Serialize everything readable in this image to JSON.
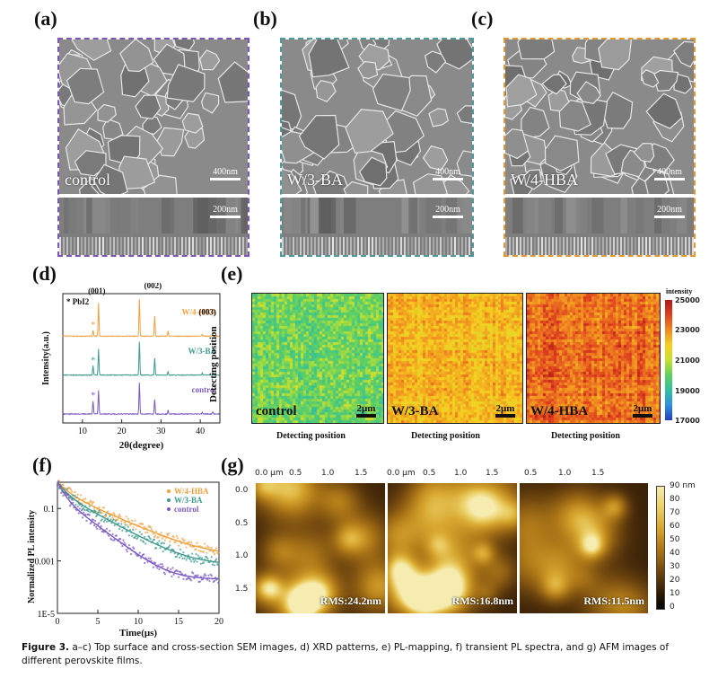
{
  "panels": {
    "a": {
      "label": "(a)",
      "film": "control",
      "top_scale": "400nm",
      "cross_scale": "200nm",
      "border_color": "#7b55b8"
    },
    "b": {
      "label": "(b)",
      "film": "W/3-BA",
      "top_scale": "400nm",
      "cross_scale": "200nm",
      "border_color": "#4a9a9a"
    },
    "c": {
      "label": "(c)",
      "film": "W/4-HBA",
      "top_scale": "400nm",
      "cross_scale": "200nm",
      "border_color": "#e8962e"
    },
    "d": {
      "label": "(d)"
    },
    "e": {
      "label": "(e)"
    },
    "f": {
      "label": "(f)"
    },
    "g": {
      "label": "(g)"
    }
  },
  "pl_mapping": {
    "ylabel": "Detecting position",
    "xlabels": [
      "Detecting position",
      "Detecting position",
      "Detecting position"
    ],
    "maps": [
      {
        "name": "control",
        "scale": "2μm"
      },
      {
        "name": "W/3-BA",
        "scale": "2μm"
      },
      {
        "name": "W/4-HBA",
        "scale": "2μm"
      }
    ],
    "colorbar": {
      "title": "intensity",
      "ticks": [
        "25000",
        "23000",
        "21000",
        "19000",
        "17000"
      ]
    }
  },
  "afm": {
    "x_ticks": [
      "0.0 μm",
      "0.5",
      "1.0",
      "1.5"
    ],
    "y_ticks": [
      "0.0",
      "0.5",
      "1.0",
      "1.5"
    ],
    "rms": [
      "RMS:24.2nm",
      "RMS:16.8nm",
      "RMS:11.5nm"
    ],
    "colorbar_ticks": [
      "90 nm",
      "80",
      "70",
      "60",
      "50",
      "40",
      "30",
      "20",
      "10",
      "0"
    ]
  },
  "caption": {
    "prefix": "Figure 3.",
    "text": " a–c) Top surface and cross-section SEM images, d) XRD patterns, e) PL-mapping, f) transient PL spectra, and g) AFM images of different perovskite films."
  },
  "chart_data": [
    {
      "type": "line",
      "panel": "d",
      "title": "",
      "xlabel": "2θ(degree)",
      "ylabel": "Intensity(a.u.)",
      "xlim": [
        5,
        45
      ],
      "x_ticks": [
        "10",
        "20",
        "30",
        "40"
      ],
      "annotation_legend": "* PbI2",
      "peak_labels": [
        {
          "label": "(001)",
          "x": 14.1
        },
        {
          "label": "(002)",
          "x": 28.4
        },
        {
          "label": "(003)",
          "x": 43.2
        }
      ],
      "series": [
        {
          "name": "W/4-HBA",
          "color": "#f0a040",
          "offset": 2,
          "peaks": [
            [
              12.7,
              0.15
            ],
            [
              14.1,
              0.9
            ],
            [
              24.5,
              1.0
            ],
            [
              28.4,
              0.55
            ],
            [
              31.8,
              0.12
            ],
            [
              40.5,
              0.06
            ],
            [
              43.2,
              0.08
            ]
          ]
        },
        {
          "name": "W/3-BA",
          "color": "#3d9a8e",
          "offset": 1,
          "peaks": [
            [
              12.7,
              0.25
            ],
            [
              14.1,
              0.7
            ],
            [
              24.5,
              0.9
            ],
            [
              28.4,
              0.45
            ],
            [
              31.8,
              0.1
            ],
            [
              40.5,
              0.05
            ],
            [
              43.2,
              0.06
            ]
          ]
        },
        {
          "name": "control",
          "color": "#7a5ac0",
          "offset": 0,
          "peaks": [
            [
              12.7,
              0.35
            ],
            [
              14.1,
              0.65
            ],
            [
              24.5,
              0.85
            ],
            [
              28.4,
              0.4
            ],
            [
              31.8,
              0.1
            ],
            [
              40.5,
              0.05
            ],
            [
              43.2,
              0.06
            ]
          ]
        }
      ]
    },
    {
      "type": "scatter",
      "panel": "f",
      "title": "",
      "xlabel": "Time(μs)",
      "ylabel": "Normalized PL intensity",
      "xlim": [
        0,
        20
      ],
      "ylim_log10": [
        -5,
        0
      ],
      "x_ticks": [
        "0",
        "5",
        "10",
        "15",
        "20"
      ],
      "y_ticks": [
        "0.1",
        "0.001",
        "1E-5"
      ],
      "legend_position": "top-right",
      "series": [
        {
          "name": "W/4-HBA",
          "color": "#f0a040",
          "tau1": 1.0,
          "tau2": 3.2,
          "a1": 0.55,
          "floor": 0.0015
        },
        {
          "name": "W/3-BA",
          "color": "#3d9a8e",
          "tau1": 0.8,
          "tau2": 2.6,
          "a1": 0.6,
          "floor": 0.0007
        },
        {
          "name": "control",
          "color": "#7a5ac0",
          "tau1": 0.6,
          "tau2": 1.9,
          "a1": 0.7,
          "floor": 0.0002
        }
      ]
    }
  ]
}
